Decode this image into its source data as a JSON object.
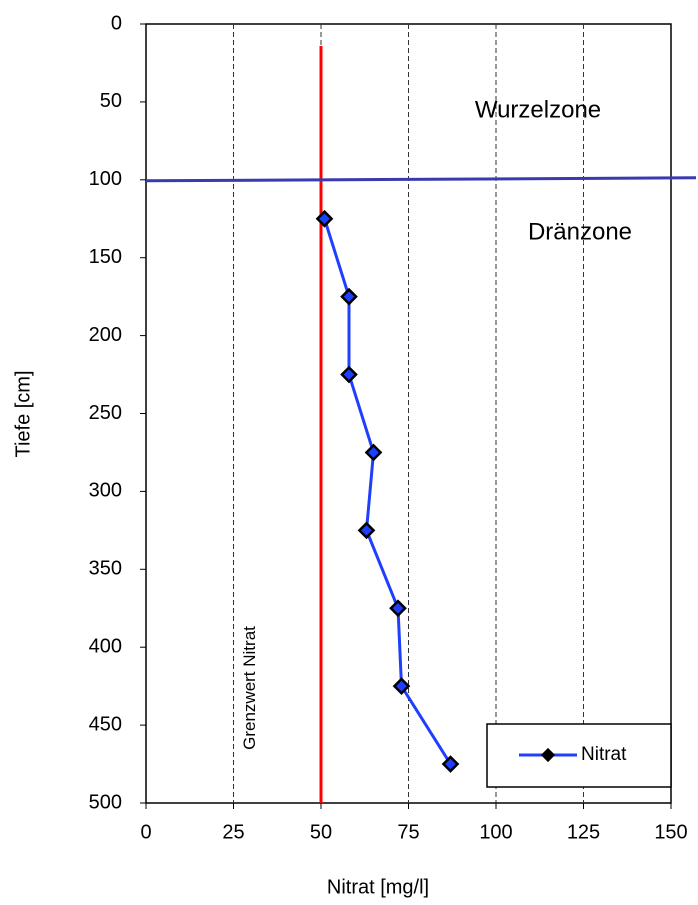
{
  "chart_data": {
    "type": "line",
    "x_label": "Nitrat [mg/l]",
    "y_label": "Tiefe [cm]",
    "x": [
      51,
      58,
      58,
      65,
      63,
      72,
      73,
      87
    ],
    "series": [
      {
        "name": "Nitrat",
        "color": "#1f3fff",
        "values": [
          125,
          175,
          225,
          275,
          325,
          375,
          425,
          475
        ]
      }
    ],
    "xlim": [
      0,
      150
    ],
    "xticks": [
      0,
      25,
      50,
      75,
      100,
      125,
      150
    ],
    "ylim": [
      0,
      500
    ],
    "yticks": [
      0,
      50,
      100,
      150,
      200,
      250,
      300,
      350,
      400,
      450,
      500
    ],
    "y_inverted": true,
    "x_grid": true,
    "grid_style": "dashed",
    "limit_line": {
      "x": 50,
      "color": "#ff0000",
      "label": "Grenzwert Nitrat"
    },
    "boundary_line": {
      "y": 100,
      "color": "#3a3ab0"
    },
    "annotations": [
      "Wurzelzone",
      "Dränzone"
    ],
    "legend": "bottom-right"
  }
}
